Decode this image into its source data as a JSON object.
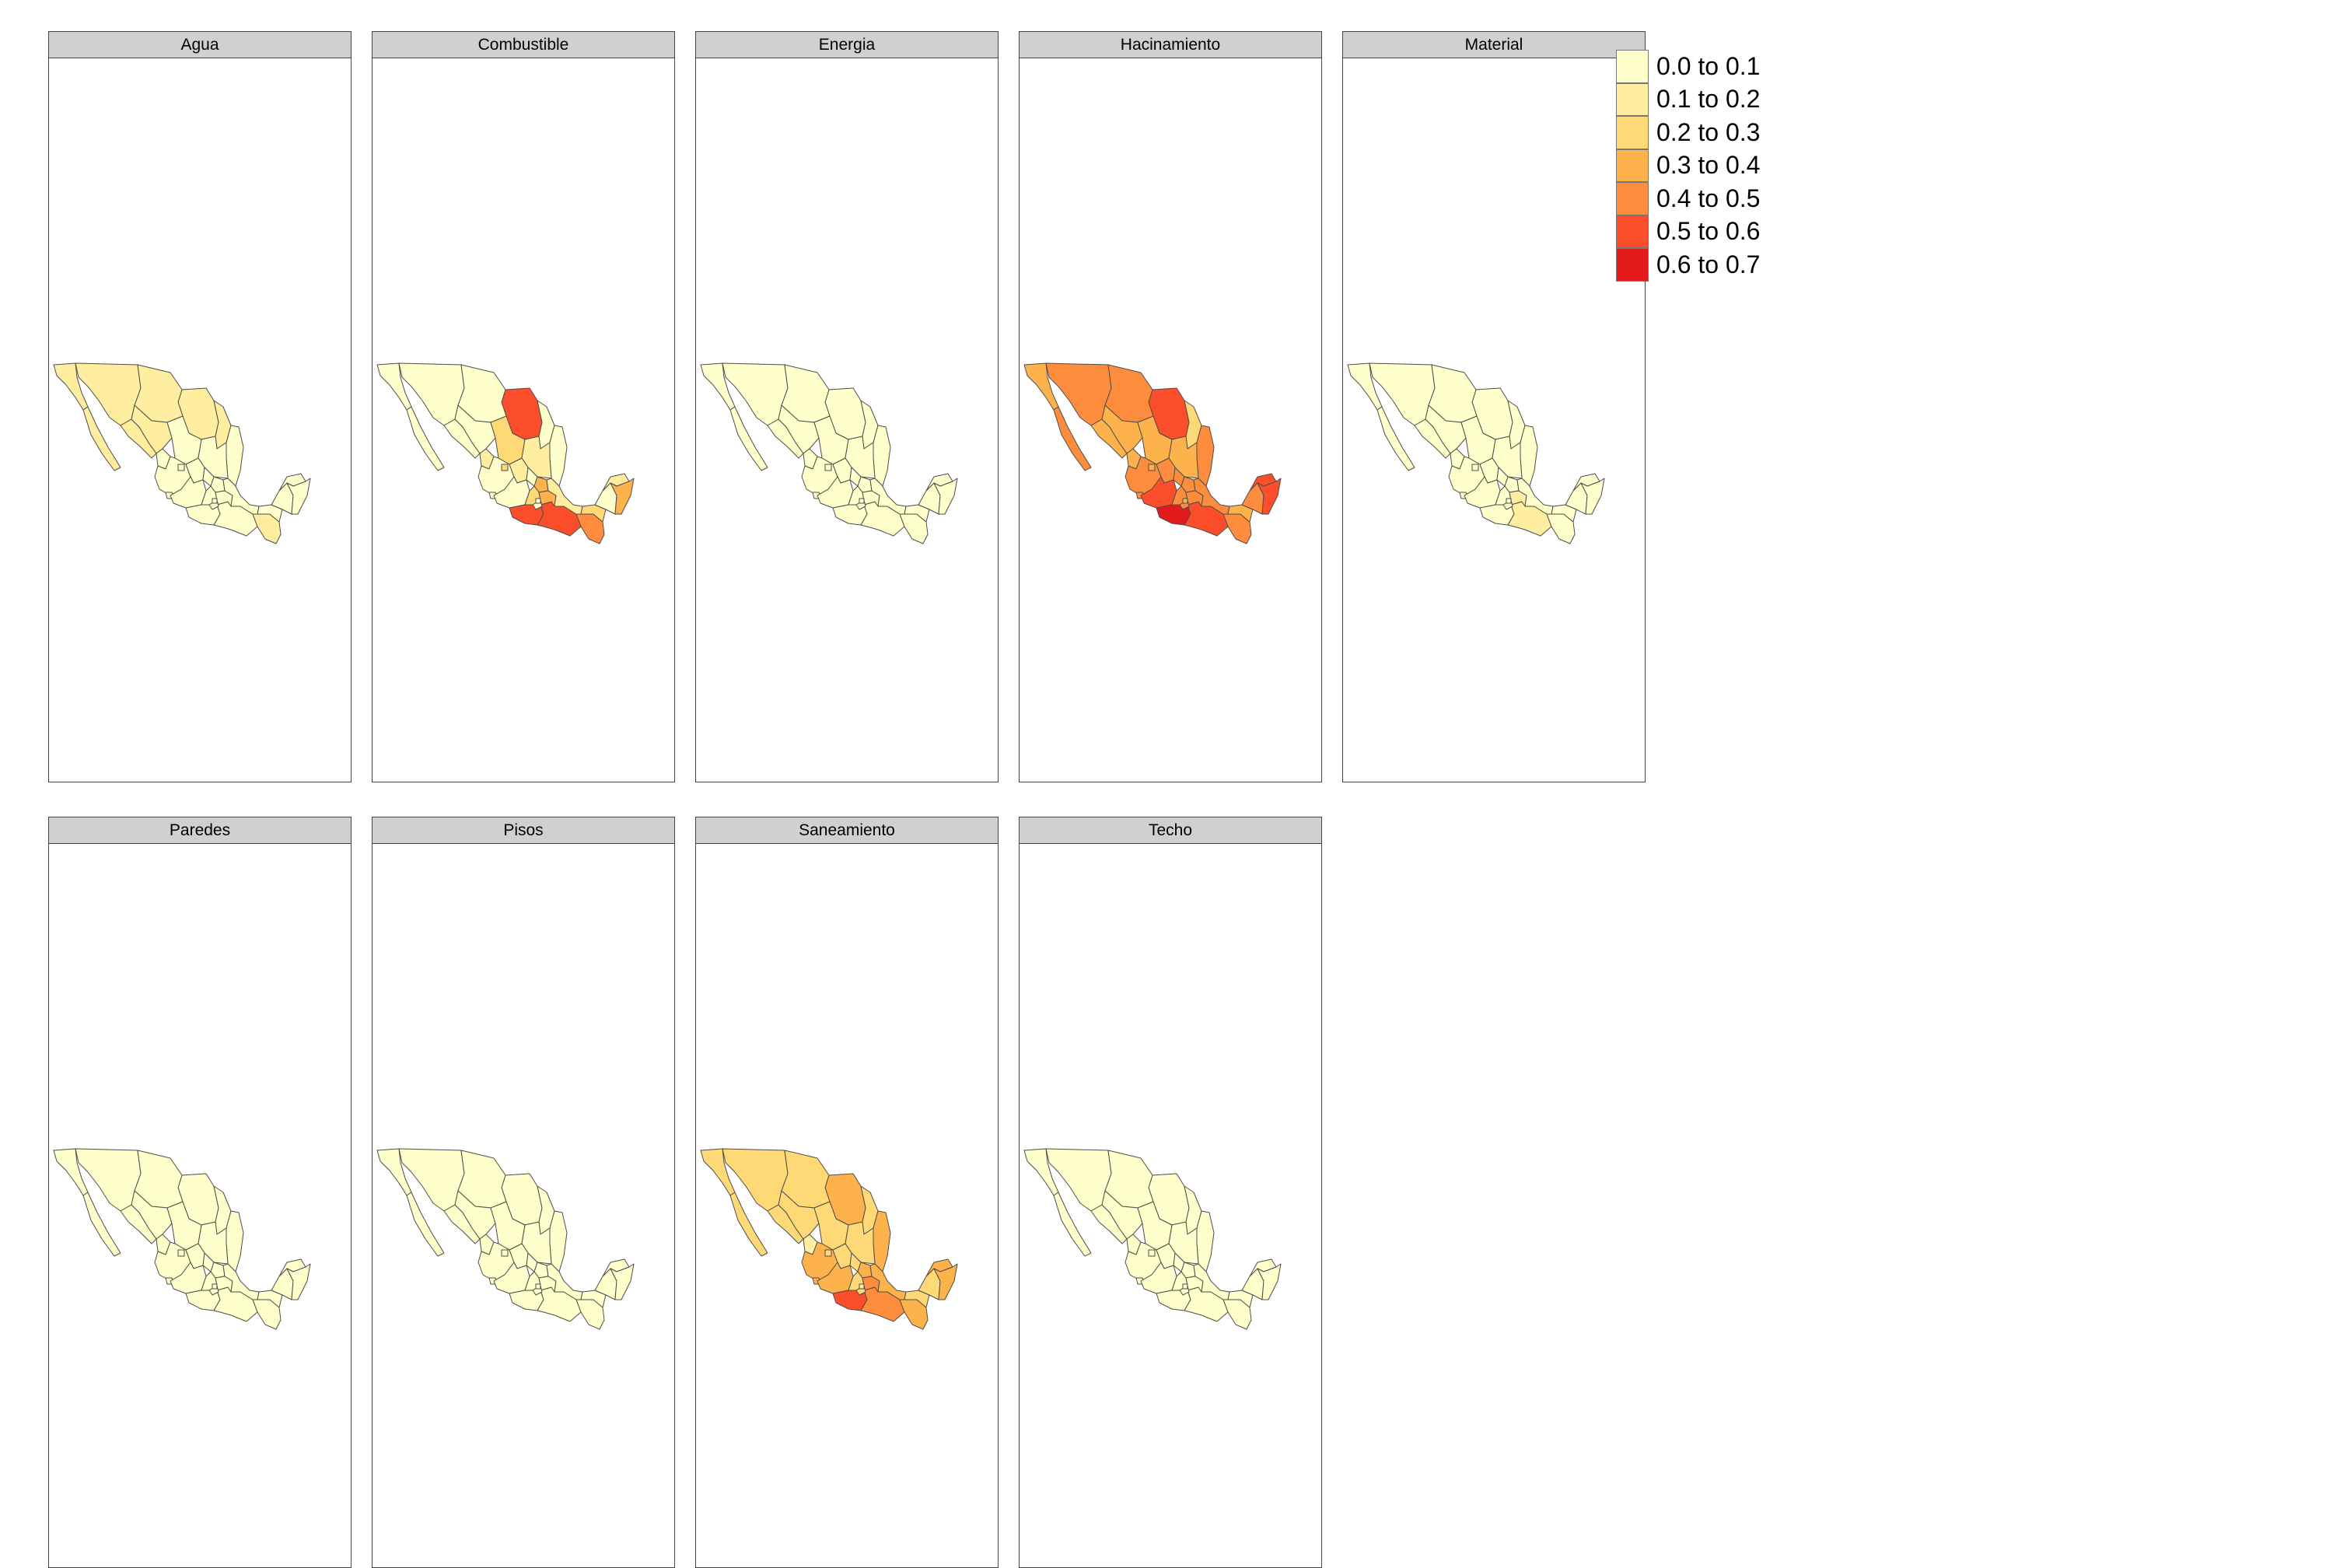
{
  "facets": [
    {
      "name": "Agua",
      "classes": [
        1,
        1,
        1,
        1,
        1,
        1,
        1,
        1,
        0,
        0,
        0,
        0,
        0,
        0,
        0,
        0,
        0,
        0,
        0,
        0,
        0,
        0,
        0,
        0,
        0,
        0,
        1,
        0,
        0,
        0,
        0,
        0
      ]
    },
    {
      "name": "Combustible",
      "classes": [
        5,
        0,
        0,
        0,
        0,
        0,
        0,
        0,
        0,
        2,
        1,
        1,
        0,
        2,
        0,
        1,
        0,
        0,
        3,
        2,
        0,
        5,
        5,
        3,
        1,
        0,
        4,
        2,
        0,
        1,
        3,
        0
      ]
    },
    {
      "name": "Energia",
      "classes": [
        0,
        0,
        0,
        0,
        0,
        0,
        0,
        0,
        0,
        0,
        0,
        0,
        0,
        0,
        0,
        0,
        0,
        0,
        0,
        0,
        0,
        0,
        0,
        0,
        0,
        0,
        0,
        0,
        0,
        0,
        0,
        0
      ]
    },
    {
      "name": "Hacinamiento",
      "classes": [
        5,
        3,
        4,
        4,
        4,
        3,
        3,
        2,
        4,
        3,
        3,
        3,
        4,
        3,
        4,
        4,
        4,
        5,
        4,
        4,
        5,
        6,
        5,
        4,
        4,
        4,
        4,
        3,
        4,
        5,
        5,
        3
      ]
    },
    {
      "name": "Material",
      "classes": [
        0,
        0,
        0,
        0,
        0,
        0,
        0,
        0,
        0,
        0,
        0,
        0,
        0,
        0,
        0,
        0,
        0,
        0,
        0,
        0,
        0,
        0,
        1,
        1,
        0,
        0,
        0,
        0,
        0,
        0,
        0,
        0
      ]
    },
    {
      "name": "Paredes",
      "classes": [
        0,
        0,
        0,
        0,
        0,
        0,
        0,
        0,
        0,
        0,
        0,
        0,
        0,
        0,
        0,
        0,
        0,
        0,
        0,
        0,
        0,
        0,
        0,
        0,
        0,
        0,
        0,
        0,
        0,
        0,
        0,
        0
      ]
    },
    {
      "name": "Pisos",
      "classes": [
        0,
        0,
        0,
        0,
        0,
        0,
        0,
        0,
        0,
        0,
        0,
        0,
        0,
        0,
        0,
        0,
        0,
        0,
        0,
        0,
        0,
        0,
        0,
        0,
        0,
        0,
        0,
        0,
        0,
        0,
        0,
        0
      ]
    },
    {
      "name": "Saneamiento",
      "classes": [
        3,
        2,
        2,
        2,
        2,
        2,
        2,
        2,
        3,
        2,
        2,
        1,
        3,
        2,
        3,
        2,
        2,
        3,
        3,
        2,
        3,
        5,
        4,
        4,
        3,
        2,
        3,
        2,
        2,
        3,
        3,
        1
      ]
    },
    {
      "name": "Techo",
      "classes": [
        0,
        0,
        0,
        0,
        0,
        0,
        0,
        0,
        0,
        0,
        0,
        0,
        0,
        0,
        0,
        0,
        0,
        0,
        0,
        0,
        0,
        0,
        0,
        0,
        0,
        0,
        0,
        0,
        0,
        0,
        0,
        0
      ]
    }
  ],
  "legend": [
    {
      "label": "0.0 to 0.1",
      "color": "#ffffcc"
    },
    {
      "label": "0.1 to 0.2",
      "color": "#ffeda0"
    },
    {
      "label": "0.2 to 0.3",
      "color": "#fed976"
    },
    {
      "label": "0.3 to 0.4",
      "color": "#feb24c"
    },
    {
      "label": "0.4 to 0.5",
      "color": "#fd8d3c"
    },
    {
      "label": "0.5 to 0.6",
      "color": "#fc4e2a"
    },
    {
      "label": "0.6 to 0.7",
      "color": "#e31a1c"
    }
  ]
}
